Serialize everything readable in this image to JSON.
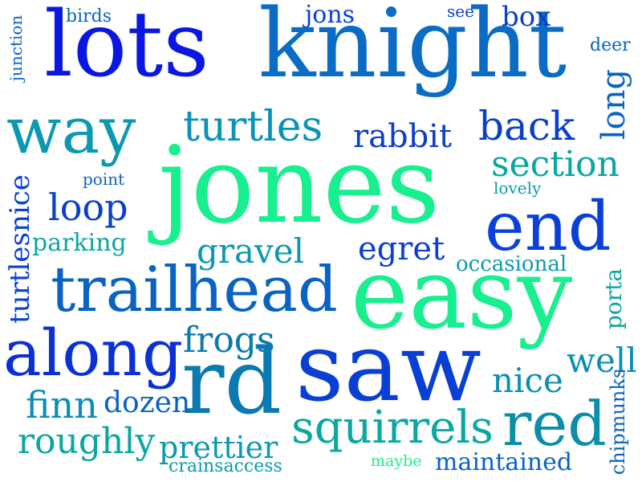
{
  "cloud": {
    "words": [
      {
        "text": "jones",
        "color": "#18ef8f"
      },
      {
        "text": "knight",
        "color": "#0a6cc4"
      },
      {
        "text": "lots",
        "color": "#0a17e3"
      },
      {
        "text": "easy",
        "color": "#18ef8f"
      },
      {
        "text": "saw",
        "color": "#0a3fd6"
      },
      {
        "text": "rd",
        "color": "#0a7ab0"
      },
      {
        "text": "way",
        "color": "#0a99b0"
      },
      {
        "text": "trailhead",
        "color": "#0a63c2"
      },
      {
        "text": "along",
        "color": "#0a30d6"
      },
      {
        "text": "end",
        "color": "#0a40d9"
      },
      {
        "text": "turtles",
        "color": "#0a93b8"
      },
      {
        "text": "back",
        "color": "#0a3fc9"
      },
      {
        "text": "squirrels",
        "color": "#0aa8a0"
      },
      {
        "text": "red",
        "color": "#0a8faa"
      },
      {
        "text": "section",
        "color": "#0aa6a0"
      },
      {
        "text": "rabbit",
        "color": "#0a3fc9"
      },
      {
        "text": "loop",
        "color": "#0a3fc9"
      },
      {
        "text": "gravel",
        "color": "#0a99b0"
      },
      {
        "text": "egret",
        "color": "#0a40d0"
      },
      {
        "text": "frogs",
        "color": "#0a7ab0"
      },
      {
        "text": "nice",
        "color": "#0a8fb3"
      },
      {
        "text": "well",
        "color": "#0a8fb3"
      },
      {
        "text": "finn",
        "color": "#0a8fb3"
      },
      {
        "text": "dozen",
        "color": "#0a63c2"
      },
      {
        "text": "roughly",
        "color": "#0aa6a0"
      },
      {
        "text": "prettier",
        "color": "#0a99b0"
      },
      {
        "text": "parking",
        "color": "#0aa6a0"
      },
      {
        "text": "occasional",
        "color": "#0a99b0"
      },
      {
        "text": "maintained",
        "color": "#0a63c2"
      },
      {
        "text": "birds",
        "color": "#0a63c2"
      },
      {
        "text": "jons",
        "color": "#0a40d9"
      },
      {
        "text": "see",
        "color": "#0a3fc9"
      },
      {
        "text": "box",
        "color": "#0a3fc9"
      },
      {
        "text": "deer",
        "color": "#0a63c2"
      },
      {
        "text": "point",
        "color": "#0a63c2"
      },
      {
        "text": "lovely",
        "color": "#0a99b0"
      },
      {
        "text": "crainsaccess",
        "color": "#0a99b0"
      },
      {
        "text": "maybe",
        "color": "#18ef8f"
      },
      {
        "text": "junction",
        "color": "#0a63c2"
      },
      {
        "text": "long",
        "color": "#0a63c2"
      },
      {
        "text": "turtlesnice",
        "color": "#0a40d9"
      },
      {
        "text": "porta",
        "color": "#0aa6a0"
      },
      {
        "text": "chipmunks",
        "color": "#0a63c2"
      }
    ]
  }
}
